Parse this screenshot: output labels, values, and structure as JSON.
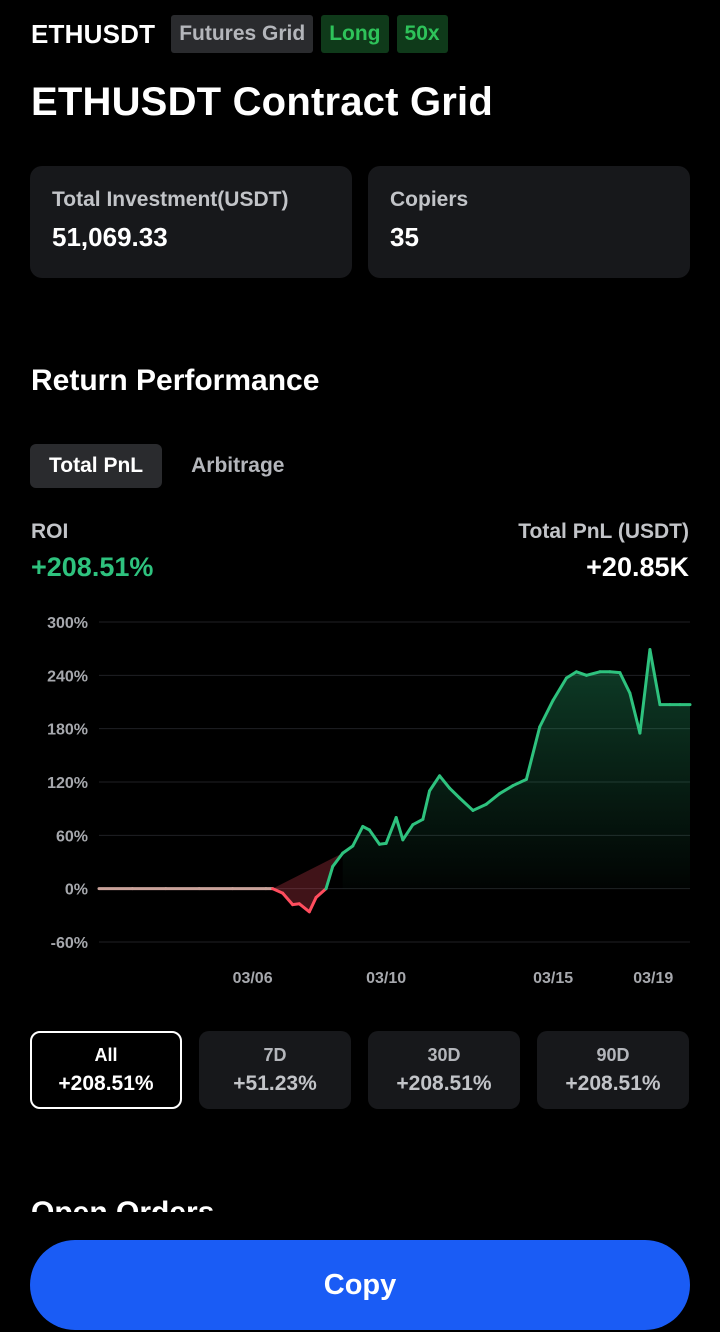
{
  "header": {
    "symbol": "ETHUSDT",
    "tags": {
      "type": "Futures Grid",
      "direction": "Long",
      "leverage": "50x"
    }
  },
  "title": "ETHUSDT Contract Grid",
  "stats": {
    "investment": {
      "label": "Total Investment(USDT)",
      "value": "51,069.33"
    },
    "copiers": {
      "label": "Copiers",
      "value": "35"
    }
  },
  "performance": {
    "section_title": "Return Performance",
    "tabs": [
      "Total PnL",
      "Arbitrage"
    ],
    "roi_label": "ROI",
    "roi_value": "+208.51%",
    "pnl_label": "Total PnL (USDT)",
    "pnl_value": "+20.85K"
  },
  "colors": {
    "positive": "#2ec27e",
    "negative": "#ff4d5e",
    "flat": "#c9a29a",
    "accent": "#1a5cf5"
  },
  "chart_data": {
    "type": "area",
    "y_tick_labels": [
      "300%",
      "240%",
      "180%",
      "120%",
      "60%",
      "0%",
      "-60%"
    ],
    "y_ticks": [
      300,
      240,
      180,
      120,
      60,
      0,
      -60
    ],
    "ylim": [
      -60,
      300
    ],
    "x_tick_labels": [
      "03/06",
      "03/10",
      "03/15",
      "03/19"
    ],
    "x_ticks": [
      4.6,
      8.6,
      13.6,
      16.6
    ],
    "xlim": [
      0,
      17.7
    ],
    "grid": true,
    "x": [
      0,
      1,
      2,
      3,
      4,
      5,
      5.2,
      5.5,
      5.8,
      6.0,
      6.3,
      6.5,
      6.8,
      7.0,
      7.3,
      7.6,
      7.9,
      8.1,
      8.4,
      8.6,
      8.9,
      9.1,
      9.4,
      9.7,
      9.9,
      10.2,
      10.5,
      10.8,
      11.2,
      11.6,
      12.0,
      12.4,
      12.8,
      13.2,
      13.6,
      14.0,
      14.3,
      14.6,
      15.0,
      15.3,
      15.6,
      15.9,
      16.2,
      16.5,
      16.8,
      17.1,
      17.4,
      17.7
    ],
    "values": [
      0,
      0,
      0,
      0,
      0,
      0,
      0,
      -5,
      -18,
      -17,
      -26,
      -10,
      0,
      25,
      40,
      48,
      70,
      66,
      50,
      51,
      80,
      55,
      72,
      78,
      110,
      127,
      113,
      102,
      88,
      95,
      107,
      116,
      123,
      182,
      212,
      237,
      244,
      240,
      244,
      244,
      243,
      220,
      175,
      269,
      207,
      207,
      207,
      207
    ]
  },
  "ranges": [
    {
      "label": "All",
      "value": "+208.51%"
    },
    {
      "label": "7D",
      "value": "+51.23%"
    },
    {
      "label": "30D",
      "value": "+208.51%"
    },
    {
      "label": "90D",
      "value": "+208.51%"
    }
  ],
  "next_section_title": "Open Orders",
  "copy_label": "Copy"
}
